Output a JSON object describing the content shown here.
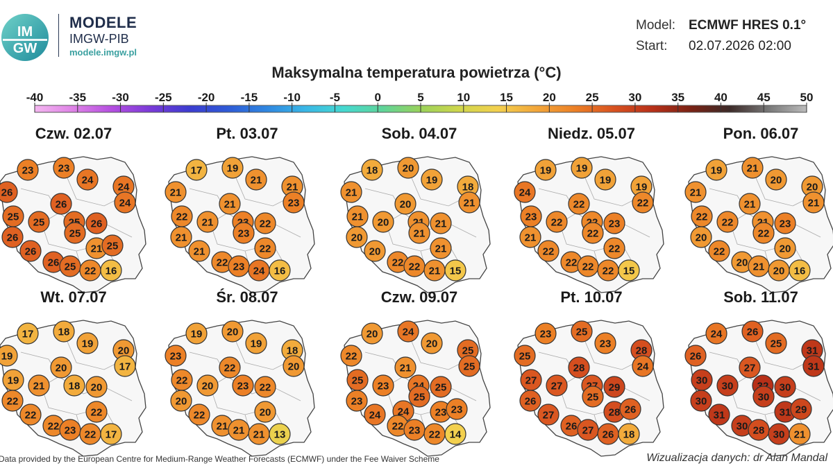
{
  "header": {
    "brand_title": "MODELE",
    "brand_sub": "IMGW-PIB",
    "brand_url": "modele.imgw.pl",
    "logo_text_top": "IM",
    "logo_text_bottom": "GW",
    "model_label": "Model:",
    "model_value": "ECMWF HRES 0.1°",
    "start_label": "Start:",
    "start_value": "02.07.2026 02:00"
  },
  "title": "Maksymalna temperatura powietrza (°C)",
  "scale": {
    "ticks": [
      "-40",
      "-35",
      "-30",
      "-25",
      "-20",
      "-15",
      "-10",
      "-5",
      "0",
      "5",
      "10",
      "15",
      "20",
      "25",
      "30",
      "35",
      "40",
      "45",
      "50"
    ],
    "colors": [
      "#f4b6f0",
      "#de82e6",
      "#b44ee0",
      "#7a3ad8",
      "#3c3cd0",
      "#2e5ad6",
      "#2f86e0",
      "#39b6e6",
      "#45d8d0",
      "#5ed49a",
      "#9ad25a",
      "#cfd64c",
      "#f3d04e",
      "#f2a63a",
      "#ec8026",
      "#d85220",
      "#b83018",
      "#7a2214",
      "#3c2a28",
      "#777777",
      "#bbbbbb"
    ]
  },
  "panels": [
    {
      "title": "Czw. 02.07",
      "values": [
        23,
        23,
        24,
        24,
        26,
        26,
        24,
        25,
        25,
        25,
        26,
        26,
        25,
        26,
        21,
        25,
        26,
        25,
        22,
        16
      ]
    },
    {
      "title": "Pt. 03.07",
      "values": [
        17,
        19,
        21,
        21,
        21,
        21,
        23,
        22,
        21,
        23,
        22,
        21,
        23,
        21,
        22,
        22,
        23,
        24,
        16
      ]
    },
    {
      "title": "Sob. 04.07",
      "values": [
        18,
        20,
        19,
        18,
        21,
        20,
        21,
        21,
        20,
        21,
        21,
        20,
        21,
        20,
        21,
        22,
        22,
        21,
        15
      ]
    },
    {
      "title": "Niedz. 05.07",
      "values": [
        19,
        19,
        19,
        19,
        24,
        22,
        22,
        23,
        22,
        22,
        23,
        21,
        22,
        22,
        22,
        22,
        22,
        22,
        15
      ]
    },
    {
      "title": "Pon. 06.07",
      "values": [
        19,
        21,
        20,
        20,
        21,
        21,
        21,
        22,
        22,
        21,
        23,
        20,
        22,
        22,
        20,
        20,
        21,
        20,
        16
      ]
    },
    {
      "title": "Wt. 07.07",
      "values": [
        17,
        18,
        19,
        20,
        19,
        20,
        17,
        19,
        21,
        18,
        20,
        22,
        22,
        22,
        22,
        23,
        22,
        17
      ]
    },
    {
      "title": "Śr. 08.07",
      "values": [
        19,
        20,
        19,
        18,
        23,
        22,
        20,
        22,
        20,
        23,
        22,
        20,
        22,
        20,
        21,
        21,
        21,
        13
      ]
    },
    {
      "title": "Czw. 09.07",
      "values": [
        20,
        24,
        20,
        25,
        22,
        21,
        25,
        25,
        23,
        24,
        25,
        23,
        25,
        24,
        24,
        23,
        23,
        22,
        23,
        22,
        14
      ]
    },
    {
      "title": "Pt. 10.07",
      "values": [
        23,
        25,
        23,
        28,
        25,
        28,
        24,
        27,
        27,
        27,
        29,
        26,
        25,
        27,
        28,
        26,
        26,
        27,
        26,
        18
      ]
    },
    {
      "title": "Sob. 11.07",
      "values": [
        24,
        26,
        25,
        31,
        26,
        27,
        31,
        30,
        30,
        32,
        30,
        30,
        30,
        31,
        31,
        29,
        30,
        28,
        30,
        21
      ]
    }
  ],
  "footer": {
    "left": "Data provided by the European Centre for Medium-Range Weather Forecasts (ECMWF) under the Fee Waiver Scheme",
    "right": "Wizualizacja danych: dr Alan Mandal"
  }
}
